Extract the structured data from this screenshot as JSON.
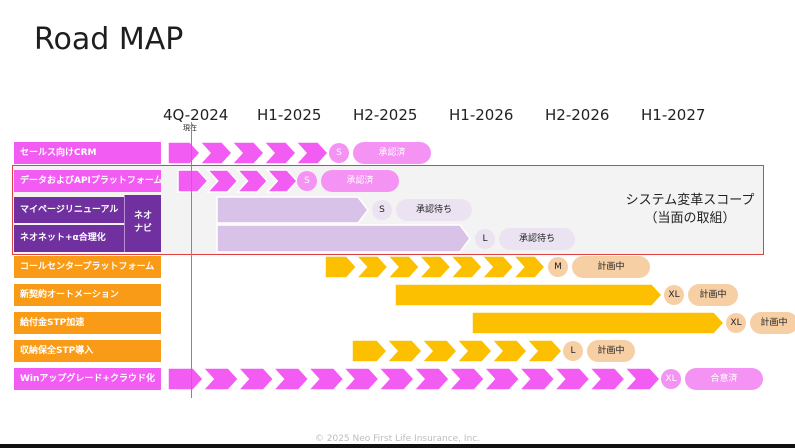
{
  "title": "Road MAP",
  "periods": [
    "4Q-2024",
    "H1-2025",
    "H2-2025",
    "H1-2026",
    "H2-2026",
    "H1-2027"
  ],
  "now_label": "現在",
  "scope_text": [
    "システム変革スコープ",
    "（当面の取組）"
  ],
  "navi_label": [
    "ネオ",
    "ナビ"
  ],
  "rows": [
    {
      "label": "セールス向けCRM",
      "size": "S",
      "status": "承認済"
    },
    {
      "label": "データおよびAPIプラットフォーム",
      "size": "S",
      "status": "承認済"
    },
    {
      "label": "マイページリニューアル",
      "size": "S",
      "status": "承認待ち"
    },
    {
      "label": "ネオネット+α合理化",
      "size": "L",
      "status": "承認待ち"
    },
    {
      "label": "コールセンタープラットフォーム",
      "size": "M",
      "status": "計画中"
    },
    {
      "label": "新契約オートメーション",
      "size": "XL",
      "status": "計画中"
    },
    {
      "label": "給付金STP加速",
      "size": "XL",
      "status": "計画中"
    },
    {
      "label": "収納保全STP導入",
      "size": "L",
      "status": "計画中"
    },
    {
      "label": "Winアップグレード+クラウド化",
      "size": "XL",
      "status": "合意済"
    }
  ],
  "colors": {
    "pink": "#f35cf2",
    "pink_light": "#f593f4",
    "orange": "#f99b16",
    "gold": "#fcc000",
    "peach": "#f6cfa4",
    "lavender": "#d9c2e8",
    "purple": "#7030a0"
  },
  "footer": "© 2025 Neo First Life Insurance, Inc."
}
